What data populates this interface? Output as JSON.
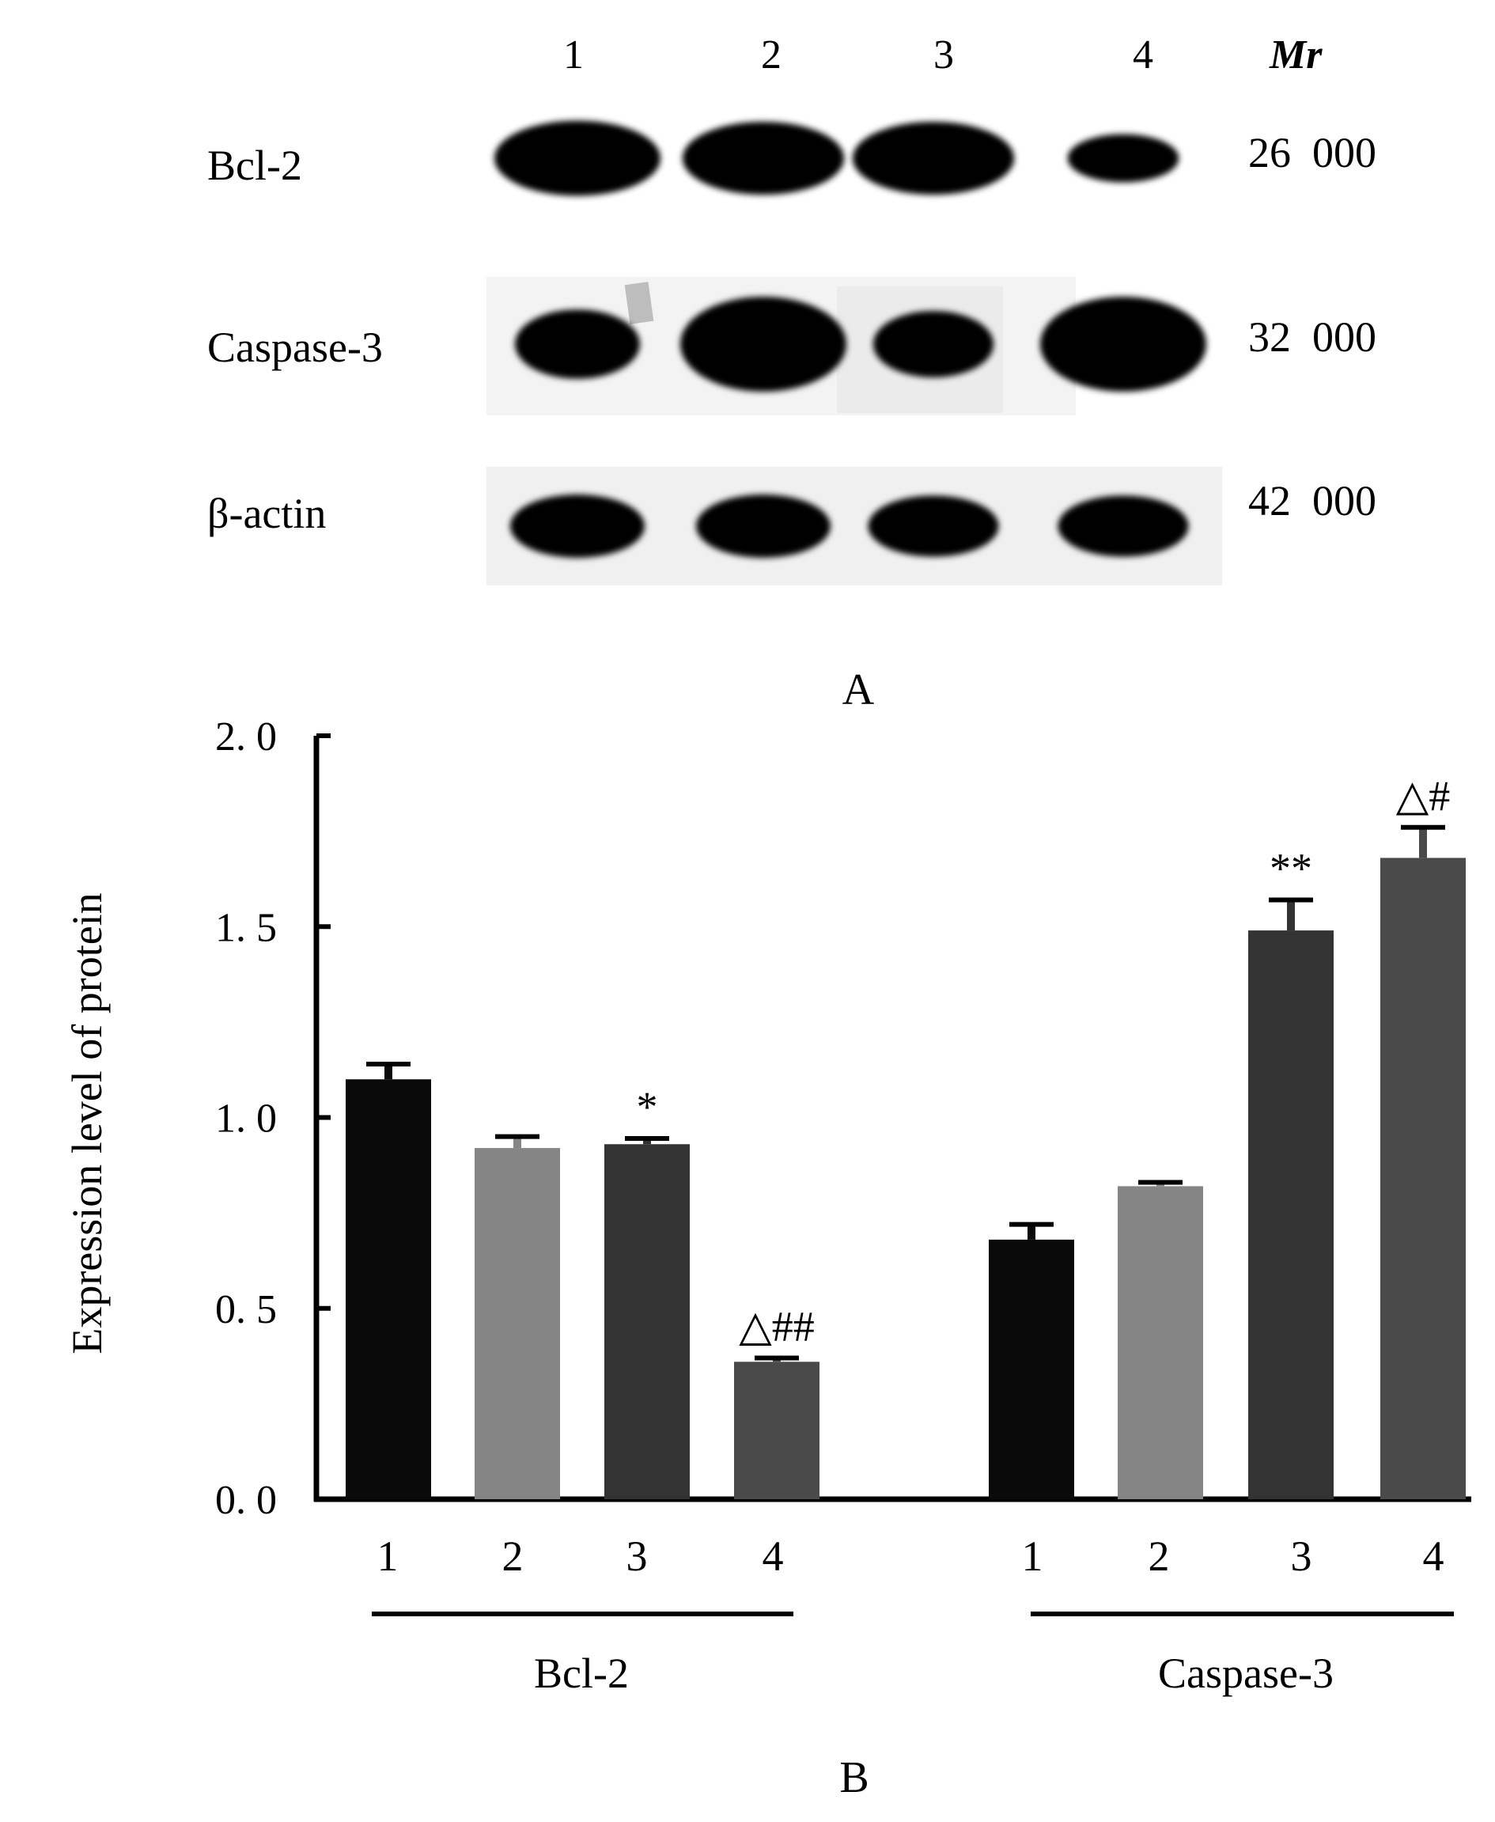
{
  "panel_a": {
    "label": "A",
    "lanes": [
      "1",
      "2",
      "3",
      "4"
    ],
    "mr_header": "Mr",
    "rows": [
      {
        "name": "Bcl-2",
        "mr": "26  000",
        "band_intensity": [
          1.0,
          0.95,
          0.95,
          0.4
        ]
      },
      {
        "name": "Caspase-3",
        "mr": "32  000",
        "band_intensity": [
          0.55,
          1.0,
          0.5,
          1.0
        ]
      },
      {
        "name": "β-actin",
        "mr": "42  000",
        "band_intensity": [
          0.9,
          0.9,
          0.85,
          0.85
        ]
      }
    ]
  },
  "panel_b": {
    "label": "B"
  },
  "chart_data": {
    "type": "bar",
    "ylabel": "Expression level of protein",
    "ylim": [
      0,
      2
    ],
    "yticks": [
      "0. 0",
      "0. 5",
      "1. 0",
      "1. 5",
      "2. 0"
    ],
    "ytick_values": [
      0,
      0.5,
      1.0,
      1.5,
      2.0
    ],
    "groups": [
      {
        "name": "Bcl-2",
        "categories": [
          "1",
          "2",
          "3",
          "4"
        ],
        "values": [
          1.1,
          0.92,
          0.93,
          0.36
        ],
        "errors": [
          0.04,
          0.03,
          0.015,
          0.01
        ],
        "annotations": [
          "",
          "",
          "*",
          "△##"
        ]
      },
      {
        "name": "Caspase-3",
        "categories": [
          "1",
          "2",
          "3",
          "4"
        ],
        "values": [
          0.68,
          0.82,
          1.49,
          1.68
        ],
        "errors": [
          0.04,
          0.01,
          0.08,
          0.08
        ],
        "annotations": [
          "",
          "",
          "**",
          "△#"
        ]
      }
    ],
    "bar_colors": [
      "#0a0a0a",
      "#858585",
      "#333333",
      "#4a4a4a"
    ],
    "grid": false,
    "legend": "none"
  }
}
